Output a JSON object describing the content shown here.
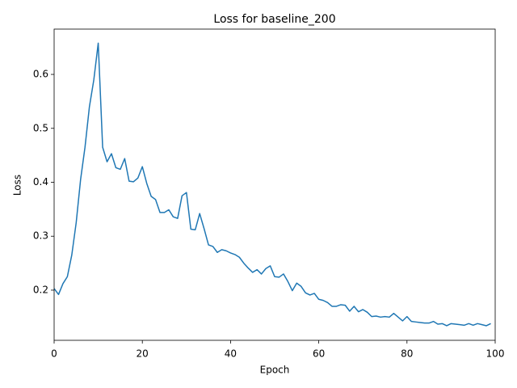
{
  "chart_data": {
    "type": "line",
    "title": "Loss for baseline_200",
    "xlabel": "Epoch",
    "ylabel": "Loss",
    "x": [
      0,
      1,
      2,
      3,
      4,
      5,
      6,
      7,
      8,
      9,
      10,
      11,
      12,
      13,
      14,
      15,
      16,
      17,
      18,
      19,
      20,
      21,
      22,
      23,
      24,
      25,
      26,
      27,
      28,
      29,
      30,
      31,
      32,
      33,
      34,
      35,
      36,
      37,
      38,
      39,
      40,
      41,
      42,
      43,
      44,
      45,
      46,
      47,
      48,
      49,
      50,
      51,
      52,
      53,
      54,
      55,
      56,
      57,
      58,
      59,
      60,
      61,
      62,
      63,
      64,
      65,
      66,
      67,
      68,
      69,
      70,
      71,
      72,
      73,
      74,
      75,
      76,
      77,
      78,
      79,
      80,
      81,
      82,
      83,
      84,
      85,
      86,
      87,
      88,
      89,
      90,
      91,
      92,
      93,
      94,
      95,
      96,
      97,
      98,
      99
    ],
    "series": [
      {
        "name": "loss",
        "color": "#1f77b4",
        "values": [
          0.203,
          0.192,
          0.212,
          0.225,
          0.265,
          0.325,
          0.405,
          0.465,
          0.54,
          0.59,
          0.658,
          0.465,
          0.438,
          0.453,
          0.427,
          0.424,
          0.444,
          0.402,
          0.401,
          0.408,
          0.429,
          0.398,
          0.374,
          0.368,
          0.344,
          0.344,
          0.349,
          0.336,
          0.333,
          0.375,
          0.381,
          0.313,
          0.312,
          0.342,
          0.314,
          0.284,
          0.281,
          0.27,
          0.275,
          0.273,
          0.269,
          0.266,
          0.261,
          0.25,
          0.241,
          0.233,
          0.238,
          0.23,
          0.24,
          0.245,
          0.225,
          0.224,
          0.23,
          0.216,
          0.199,
          0.213,
          0.207,
          0.195,
          0.191,
          0.194,
          0.183,
          0.181,
          0.177,
          0.17,
          0.17,
          0.173,
          0.172,
          0.161,
          0.17,
          0.16,
          0.164,
          0.159,
          0.151,
          0.152,
          0.15,
          0.151,
          0.15,
          0.157,
          0.15,
          0.143,
          0.151,
          0.142,
          0.141,
          0.14,
          0.139,
          0.139,
          0.142,
          0.137,
          0.138,
          0.134,
          0.138,
          0.137,
          0.136,
          0.135,
          0.138,
          0.135,
          0.138,
          0.136,
          0.134,
          0.138
        ]
      }
    ],
    "xlim": [
      0,
      100
    ],
    "xticks": [
      0,
      20,
      40,
      60,
      80,
      100
    ],
    "ylim": [
      0.107,
      0.684
    ],
    "yticks": [
      0.2,
      0.3,
      0.4,
      0.5,
      0.6
    ],
    "grid": false
  }
}
